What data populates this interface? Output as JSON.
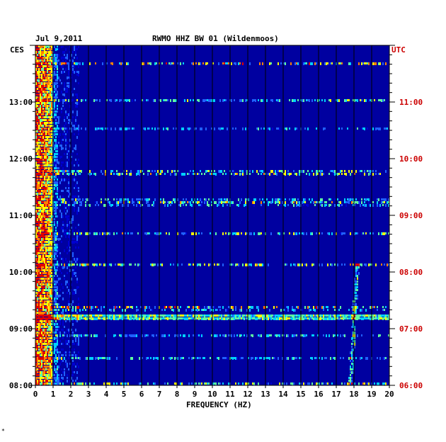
{
  "chart_data": {
    "type": "heatmap",
    "title": "RWMO HHZ BW 01 (Wildenmoos)",
    "date": "Jul 9,2011",
    "left_timezone": "CES",
    "right_timezone": "UTC",
    "xlabel": "FREQUENCY (HZ)",
    "xlim": [
      0,
      20
    ],
    "x_ticks": [
      "0",
      "1",
      "2",
      "3",
      "4",
      "5",
      "6",
      "7",
      "8",
      "9",
      "10",
      "11",
      "12",
      "13",
      "14",
      "15",
      "16",
      "17",
      "18",
      "19",
      "20"
    ],
    "ylim_hours_local": [
      8,
      14
    ],
    "y_ticks_left": [
      "13:00",
      "12:00",
      "11:00",
      "10:00",
      "09:00",
      "08:00"
    ],
    "y_ticks_right": [
      "11:00",
      "10:00",
      "09:00",
      "08:00",
      "07:00",
      "06:00"
    ],
    "footer_mark": "*",
    "colors": {
      "background": "#0000a0",
      "utc_text": "#cc0000",
      "scale": [
        "#00007a",
        "#0000d0",
        "#2060ff",
        "#00d0ff",
        "#60ffa0",
        "#ffff00",
        "#ff8000",
        "#e00000"
      ]
    },
    "features": [
      {
        "label": "strong low-frequency energy",
        "freq_hz": [
          0,
          1
        ]
      },
      {
        "label": "broadband line",
        "time_local": "09:14"
      },
      {
        "label": "drifting narrowband signal",
        "freq_hz": [
          17.8,
          18.2
        ],
        "time_local": [
          "08:00",
          "10:10"
        ]
      }
    ]
  }
}
